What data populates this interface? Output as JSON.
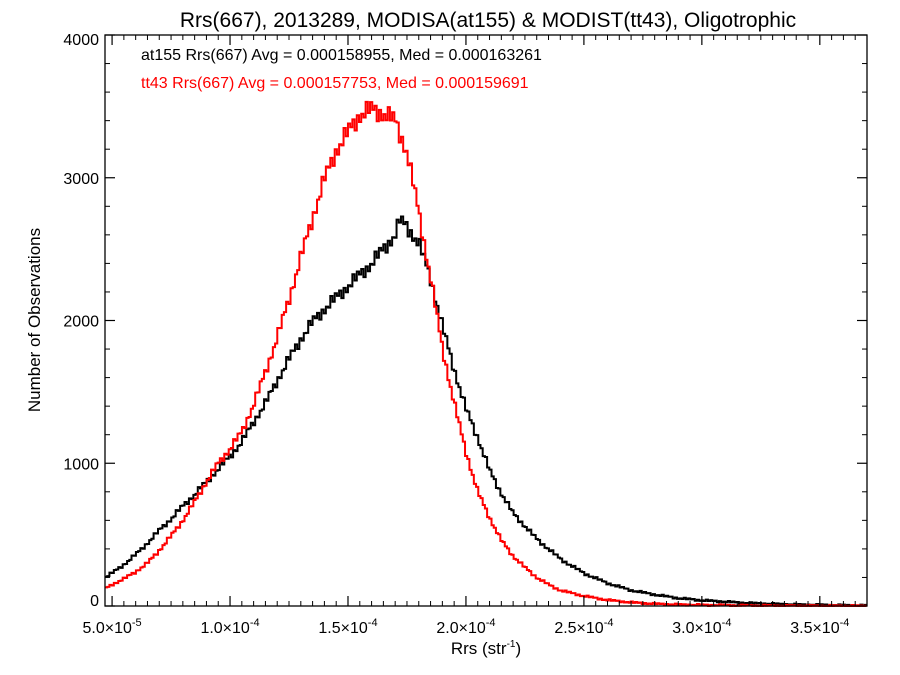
{
  "chart_data": {
    "type": "line",
    "title": "Rrs(667), 2013289, MODISA(at155) & MODIST(tt43), Oligotrophic",
    "xlabel_main": "Rrs (str",
    "xlabel_sup": "-1",
    "xlabel_tail": ")",
    "ylabel": "Number of Observations",
    "xlim": [
      4.7e-05,
      0.00037
    ],
    "ylim": [
      0,
      4000
    ],
    "grid": false,
    "x_ticks": [
      {
        "value": 5e-05,
        "mant": "5.0",
        "exp": "-5"
      },
      {
        "value": 0.0001,
        "mant": "1.0",
        "exp": "-4"
      },
      {
        "value": 0.00015,
        "mant": "1.5",
        "exp": "-4"
      },
      {
        "value": 0.0002,
        "mant": "2.0",
        "exp": "-4"
      },
      {
        "value": 0.00025,
        "mant": "2.5",
        "exp": "-4"
      },
      {
        "value": 0.0003,
        "mant": "3.0",
        "exp": "-4"
      },
      {
        "value": 0.00035,
        "mant": "3.5",
        "exp": "-4"
      }
    ],
    "y_ticks": [
      0,
      1000,
      2000,
      3000,
      4000
    ],
    "annotations": [
      {
        "text": "at155 Rrs(667) Avg = 0.000158955, Med = 0.000163261",
        "color": "#000000"
      },
      {
        "text": "tt43 Rrs(667) Avg = 0.000157753, Med = 0.000159691",
        "color": "#ff0000"
      }
    ],
    "series": [
      {
        "color": "#000000",
        "x": [
          4.7e-05,
          5e-05,
          5.5e-05,
          6e-05,
          6.5e-05,
          7e-05,
          7.5e-05,
          8e-05,
          8.5e-05,
          9e-05,
          9.5e-05,
          0.0001,
          0.000105,
          0.00011,
          0.000115,
          0.00012,
          0.000125,
          0.00013,
          0.000135,
          0.00014,
          0.000145,
          0.00015,
          0.000155,
          0.00016,
          0.000165,
          0.00017,
          0.000172,
          0.000175,
          0.00018,
          0.000185,
          0.00019,
          0.000195,
          0.0002,
          0.000205,
          0.00021,
          0.000215,
          0.00022,
          0.000225,
          0.00023,
          0.000235,
          0.00024,
          0.00025,
          0.00026,
          0.00027,
          0.00028,
          0.00029,
          0.0003,
          0.00031,
          0.00032,
          0.00033,
          0.00034,
          0.00035,
          0.00036,
          0.00037
        ],
        "y": [
          200,
          230,
          290,
          360,
          440,
          530,
          610,
          700,
          780,
          870,
          960,
          1050,
          1150,
          1290,
          1420,
          1580,
          1730,
          1870,
          1990,
          2080,
          2160,
          2240,
          2320,
          2400,
          2500,
          2600,
          2700,
          2660,
          2540,
          2300,
          1960,
          1660,
          1380,
          1180,
          950,
          790,
          650,
          560,
          470,
          400,
          330,
          230,
          160,
          110,
          80,
          55,
          40,
          30,
          20,
          15,
          10,
          8,
          5,
          3
        ]
      },
      {
        "color": "#ff0000",
        "x": [
          4.7e-05,
          5e-05,
          5.5e-05,
          6e-05,
          6.5e-05,
          7e-05,
          7.5e-05,
          8e-05,
          8.5e-05,
          9e-05,
          9.5e-05,
          0.0001,
          0.000105,
          0.00011,
          0.000115,
          0.00012,
          0.000125,
          0.00013,
          0.000135,
          0.00014,
          0.000145,
          0.00015,
          0.000155,
          0.00016,
          0.000165,
          0.00017,
          0.000175,
          0.00018,
          0.000185,
          0.00019,
          0.000195,
          0.0002,
          0.000205,
          0.00021,
          0.000215,
          0.00022,
          0.000225,
          0.00023,
          0.000235,
          0.00024,
          0.00025,
          0.00026,
          0.00027,
          0.00028,
          0.00029,
          0.0003,
          0.00031,
          0.00032,
          0.00033,
          0.00034,
          0.00035,
          0.00036,
          0.00037
        ],
        "y": [
          120,
          150,
          190,
          240,
          300,
          390,
          490,
          600,
          730,
          870,
          1000,
          1100,
          1220,
          1410,
          1640,
          1880,
          2150,
          2440,
          2720,
          2990,
          3190,
          3320,
          3440,
          3480,
          3450,
          3400,
          3180,
          2760,
          2300,
          1810,
          1420,
          1080,
          800,
          620,
          460,
          350,
          270,
          200,
          150,
          110,
          70,
          42,
          25,
          15,
          10,
          7,
          5,
          3,
          2,
          2,
          1,
          1,
          0
        ]
      }
    ]
  }
}
